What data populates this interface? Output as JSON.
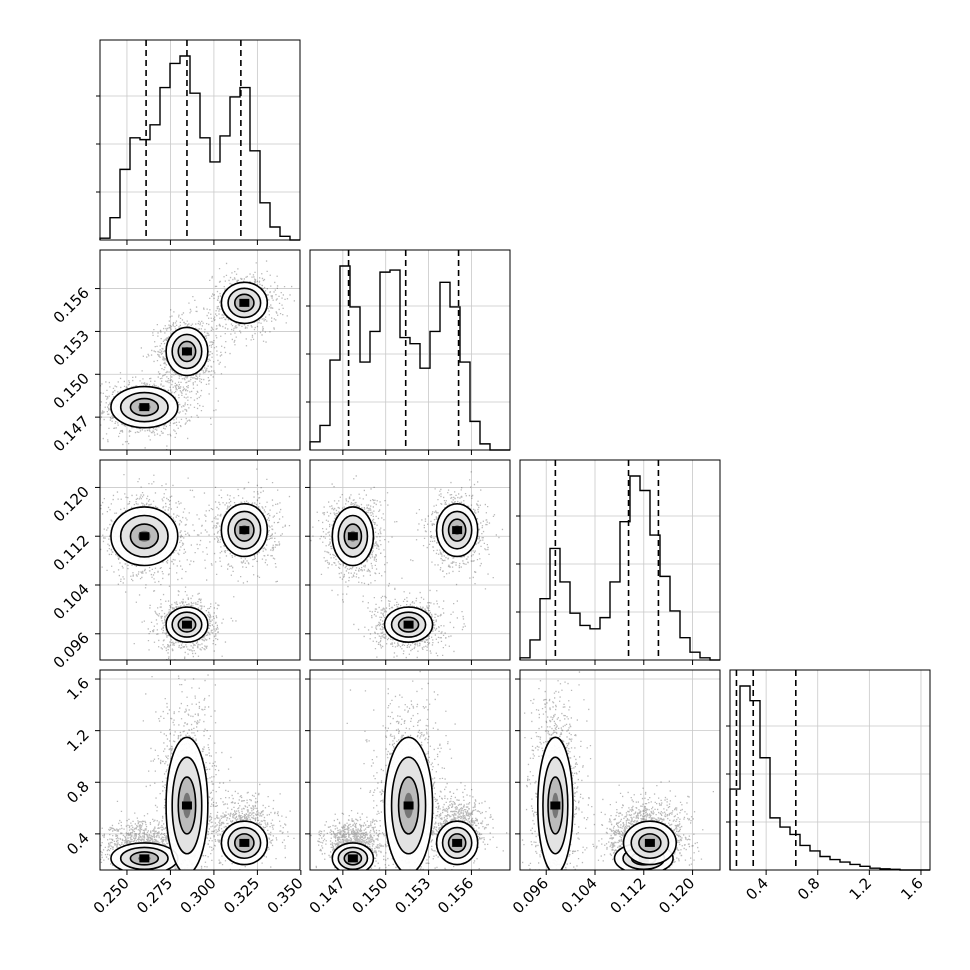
{
  "chart_data": {
    "type": "corner",
    "parameters": [
      {
        "ticks": [
          0.25,
          0.275,
          0.3,
          0.325,
          0.35
        ],
        "tick_labels": [
          "0.250",
          "0.275",
          "0.300",
          "0.325",
          "0.350"
        ],
        "range": [
          0.2345,
          0.3495
        ]
      },
      {
        "ticks": [
          0.147,
          0.15,
          0.153,
          0.156
        ],
        "tick_labels": [
          "0.147",
          "0.150",
          "0.153",
          "0.156"
        ],
        "range": [
          0.1447,
          0.1587
        ]
      },
      {
        "ticks": [
          0.096,
          0.104,
          0.112,
          0.12
        ],
        "tick_labels": [
          "0.096",
          "0.104",
          "0.112",
          "0.120"
        ],
        "range": [
          0.0917,
          0.1245
        ]
      },
      {
        "ticks": [
          0.4,
          0.8,
          1.2,
          1.6
        ],
        "tick_labels": [
          "0.4",
          "0.8",
          "1.2",
          "1.6"
        ],
        "range": [
          0.12,
          1.67
        ]
      }
    ],
    "histograms": [
      {
        "param": 0,
        "counts": [
          1,
          12,
          38,
          55,
          54,
          62,
          82,
          95,
          99,
          79,
          55,
          42,
          56,
          77,
          82,
          48,
          20,
          7,
          2,
          0
        ],
        "quantiles": [
          0.261,
          0.2845,
          0.3155
        ]
      },
      {
        "param": 1,
        "counts": [
          4,
          12,
          44,
          90,
          70,
          43,
          58,
          87,
          88,
          55,
          52,
          40,
          58,
          82,
          70,
          43,
          14,
          3,
          0,
          0
        ],
        "quantiles": [
          0.1474,
          0.1514,
          0.1551
        ]
      },
      {
        "param": 2,
        "counts": [
          2,
          18,
          55,
          100,
          70,
          42,
          31,
          28,
          38,
          70,
          124,
          165,
          152,
          112,
          75,
          44,
          20,
          7,
          2,
          0
        ],
        "quantiles": [
          0.0975,
          0.1095,
          0.1144
        ]
      },
      {
        "param": 3,
        "counts": [
          132,
          300,
          276,
          183,
          85,
          70,
          58,
          40,
          31,
          22,
          17,
          13,
          9,
          6,
          3,
          2,
          1,
          0,
          0,
          0
        ],
        "quantiles": [
          0.17,
          0.3,
          0.63
        ]
      }
    ],
    "modes": [
      {
        "weight": 0.35,
        "mean": [
          0.26,
          0.1477,
          0.112,
          0.21
        ],
        "std": [
          0.008,
          0.0006,
          0.002,
          0.05
        ]
      },
      {
        "weight": 0.35,
        "mean": [
          0.2845,
          0.1516,
          0.0975,
          0.62
        ],
        "std": [
          0.005,
          0.0007,
          0.0012,
          0.22
        ]
      },
      {
        "weight": 0.3,
        "mean": [
          0.3175,
          0.155,
          0.113,
          0.33
        ],
        "std": [
          0.0055,
          0.0006,
          0.0018,
          0.07
        ]
      }
    ],
    "levels": 3,
    "grid": true,
    "colors": {
      "ink": "#000000",
      "grid": "#c8c8c8",
      "fill": "#f7f7f7"
    }
  }
}
